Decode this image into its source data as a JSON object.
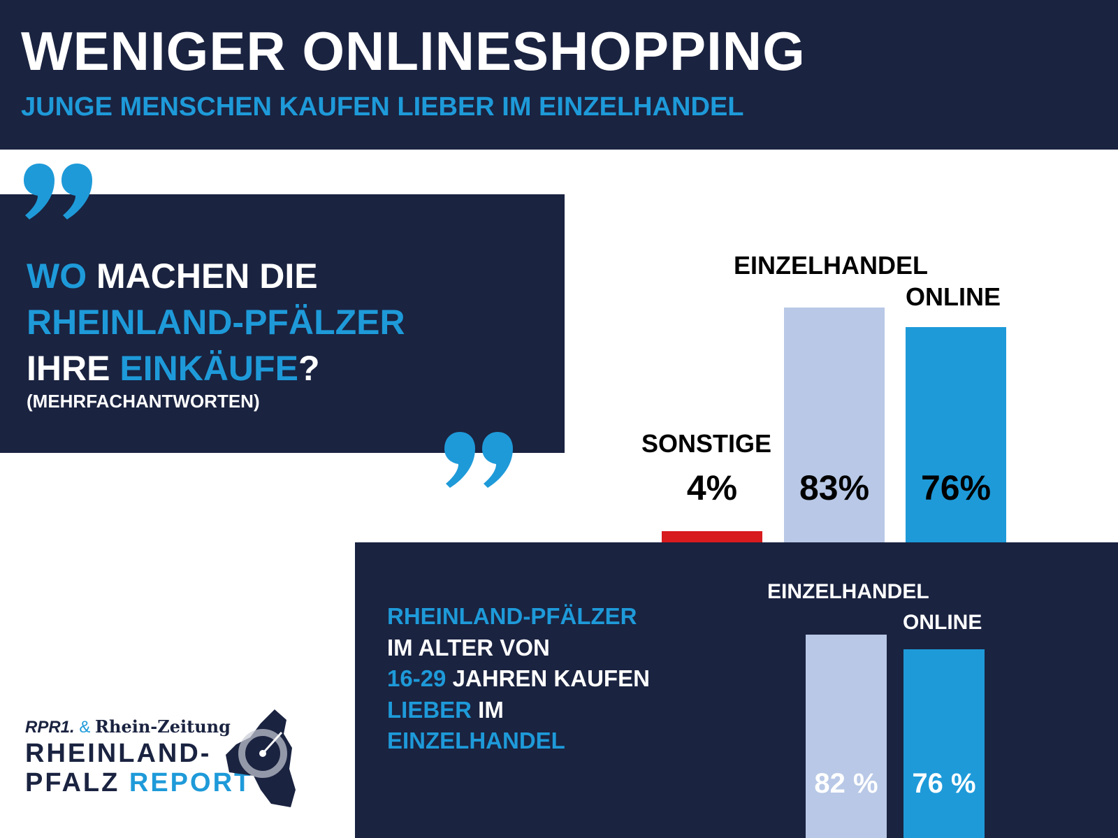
{
  "header": {
    "title": "WENIGER ONLINESHOPPING",
    "subtitle": "JUNGE MENSCHEN KAUFEN LIEBER IM EINZELHANDEL"
  },
  "question": {
    "w1": "WO",
    "w2": " MACHEN DIE",
    "w3": "RHEINLAND-PFÄLZER",
    "w4": "IHRE ",
    "w5": "EINKÄUFE",
    "w6": "?",
    "note": "(MEHRFACHANTWORTEN)"
  },
  "young": {
    "l1": "RHEINLAND-PFÄLZER",
    "l2": "IM ALTER VON",
    "l3a": "16-29",
    "l3b": " JAHREN KAUFEN",
    "l4a": "LIEBER",
    "l4b": " IM",
    "l5": "EINZELHANDEL"
  },
  "logo": {
    "brand1": "RPR1.",
    "amp": "&",
    "brand2": "Rhein-Zeitung",
    "line1": "RHEINLAND-",
    "line2a": "PFALZ ",
    "line2b": "REPORT"
  },
  "colors": {
    "navy": "#1a2340",
    "blue": "#1e9ad9",
    "light": "#b8c8e6",
    "red": "#d81b1e"
  },
  "chart_data": [
    {
      "type": "bar",
      "title": "WO MACHEN DIE RHEINLAND-PFÄLZER IHRE EINKÄUFE? (MEHRFACHANTWORTEN)",
      "categories": [
        "SONSTIGE",
        "EINZELHANDEL",
        "ONLINE"
      ],
      "values": [
        4,
        83,
        76
      ],
      "labels": [
        "4%",
        "83%",
        "76%"
      ],
      "colors": [
        "#d81b1e",
        "#b8c8e6",
        "#1e9ad9"
      ],
      "unit": "%"
    },
    {
      "type": "bar",
      "title": "RHEINLAND-PFÄLZER IM ALTER VON 16-29 JAHREN",
      "categories": [
        "EINZELHANDEL",
        "ONLINE"
      ],
      "values": [
        82,
        76
      ],
      "labels": [
        "82 %",
        "76 %"
      ],
      "colors": [
        "#b8c8e6",
        "#1e9ad9"
      ],
      "unit": "%"
    }
  ]
}
